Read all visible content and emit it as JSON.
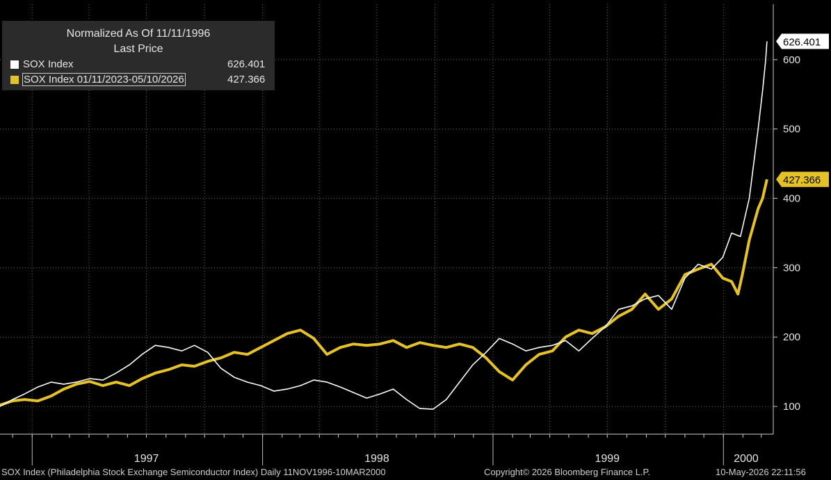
{
  "legend": {
    "title_line1": "Normalized As Of 11/11/1996",
    "title_line2": "Last Price",
    "series": [
      {
        "label": "SOX Index",
        "value": "626.401",
        "color": "#ffffff"
      },
      {
        "label": "SOX Index 01/11/2023-05/10/2026",
        "value": "427.366",
        "color": "#e6c229"
      }
    ]
  },
  "footer": {
    "left": "SOX Index (Philadelphia Stock Exchange Semiconductor Index) Daily 11NOV1996-10MAR2000",
    "center": "Copyright© 2026 Bloomberg Finance L.P.",
    "right": "10-May-2026 22:11:56"
  },
  "chart_data": {
    "type": "line",
    "ylim": [
      60,
      680
    ],
    "yticks": [
      100,
      200,
      300,
      400,
      500,
      600
    ],
    "ytick_labels": [
      "100",
      "200",
      "300",
      "400",
      "500",
      "600"
    ],
    "xlim": [
      "1996-11-11",
      "2000-03-20"
    ],
    "xtick_labels": [
      {
        "label": "1997",
        "date": "1997-07-01"
      },
      {
        "label": "1998",
        "date": "1998-07-01"
      },
      {
        "label": "1999",
        "date": "1999-07-01"
      },
      {
        "label": "2000",
        "date": "2000-02-06"
      }
    ],
    "year_boundaries": [
      "1997-01-01",
      "1998-01-01",
      "1999-01-01",
      "2000-01-01"
    ],
    "last_value_labels": [
      {
        "series": "SOX Index",
        "text": "626.401"
      },
      {
        "series": "SOX Index 01/11/2023-05/10/2026",
        "text": "427.366"
      }
    ],
    "grid": true,
    "legend_position": "top-left",
    "series": [
      {
        "name": "SOX Index",
        "color": "#ffffff",
        "points": [
          [
            "1996-11-11",
            100
          ],
          [
            "1996-12-01",
            110
          ],
          [
            "1996-12-20",
            118
          ],
          [
            "1997-01-10",
            128
          ],
          [
            "1997-01-31",
            135
          ],
          [
            "1997-02-20",
            132
          ],
          [
            "1997-03-12",
            135
          ],
          [
            "1997-04-02",
            140
          ],
          [
            "1997-04-23",
            138
          ],
          [
            "1997-05-14",
            148
          ],
          [
            "1997-06-04",
            160
          ],
          [
            "1997-06-24",
            175
          ],
          [
            "1997-07-15",
            188
          ],
          [
            "1997-08-05",
            185
          ],
          [
            "1997-08-26",
            180
          ],
          [
            "1997-09-15",
            188
          ],
          [
            "1997-10-06",
            178
          ],
          [
            "1997-10-27",
            155
          ],
          [
            "1997-11-17",
            142
          ],
          [
            "1997-12-08",
            135
          ],
          [
            "1997-12-29",
            130
          ],
          [
            "1998-01-19",
            122
          ],
          [
            "1998-02-09",
            125
          ],
          [
            "1998-03-02",
            130
          ],
          [
            "1998-03-23",
            138
          ],
          [
            "1998-04-13",
            135
          ],
          [
            "1998-05-04",
            128
          ],
          [
            "1998-05-25",
            120
          ],
          [
            "1998-06-15",
            112
          ],
          [
            "1998-07-06",
            118
          ],
          [
            "1998-07-27",
            125
          ],
          [
            "1998-08-17",
            110
          ],
          [
            "1998-09-07",
            97
          ],
          [
            "1998-09-28",
            96
          ],
          [
            "1998-10-19",
            110
          ],
          [
            "1998-11-09",
            135
          ],
          [
            "1998-11-30",
            160
          ],
          [
            "1998-12-21",
            178
          ],
          [
            "1999-01-11",
            198
          ],
          [
            "1999-02-01",
            190
          ],
          [
            "1999-02-22",
            180
          ],
          [
            "1999-03-15",
            185
          ],
          [
            "1999-04-05",
            188
          ],
          [
            "1999-04-26",
            195
          ],
          [
            "1999-05-17",
            180
          ],
          [
            "1999-06-07",
            198
          ],
          [
            "1999-06-28",
            215
          ],
          [
            "1999-07-19",
            240
          ],
          [
            "1999-08-09",
            245
          ],
          [
            "1999-08-30",
            255
          ],
          [
            "1999-09-20",
            260
          ],
          [
            "1999-10-11",
            240
          ],
          [
            "1999-11-01",
            285
          ],
          [
            "1999-11-22",
            305
          ],
          [
            "1999-12-13",
            298
          ],
          [
            "1999-12-31",
            315
          ],
          [
            "2000-01-14",
            350
          ],
          [
            "2000-01-28",
            345
          ],
          [
            "2000-02-11",
            400
          ],
          [
            "2000-02-25",
            500
          ],
          [
            "2000-03-03",
            555
          ],
          [
            "2000-03-08",
            600
          ],
          [
            "2000-03-10",
            626.401
          ]
        ]
      },
      {
        "name": "SOX Index 01/11/2023-05/10/2026",
        "color": "#e6c229",
        "points": [
          [
            "1996-11-11",
            102
          ],
          [
            "1996-12-01",
            108
          ],
          [
            "1996-12-20",
            110
          ],
          [
            "1997-01-10",
            108
          ],
          [
            "1997-01-31",
            115
          ],
          [
            "1997-02-20",
            125
          ],
          [
            "1997-03-12",
            132
          ],
          [
            "1997-04-02",
            136
          ],
          [
            "1997-04-23",
            130
          ],
          [
            "1997-05-14",
            135
          ],
          [
            "1997-06-04",
            130
          ],
          [
            "1997-06-24",
            140
          ],
          [
            "1997-07-15",
            148
          ],
          [
            "1997-08-05",
            153
          ],
          [
            "1997-08-26",
            160
          ],
          [
            "1997-09-15",
            158
          ],
          [
            "1997-10-06",
            165
          ],
          [
            "1997-10-27",
            170
          ],
          [
            "1997-11-17",
            178
          ],
          [
            "1997-12-08",
            175
          ],
          [
            "1997-12-29",
            185
          ],
          [
            "1998-01-19",
            195
          ],
          [
            "1998-02-09",
            205
          ],
          [
            "1998-03-02",
            210
          ],
          [
            "1998-03-23",
            198
          ],
          [
            "1998-04-13",
            175
          ],
          [
            "1998-05-04",
            185
          ],
          [
            "1998-05-25",
            190
          ],
          [
            "1998-06-15",
            188
          ],
          [
            "1998-07-06",
            190
          ],
          [
            "1998-07-27",
            195
          ],
          [
            "1998-08-17",
            185
          ],
          [
            "1998-09-07",
            192
          ],
          [
            "1998-09-28",
            188
          ],
          [
            "1998-10-19",
            185
          ],
          [
            "1998-11-09",
            190
          ],
          [
            "1998-11-30",
            185
          ],
          [
            "1998-12-21",
            170
          ],
          [
            "1999-01-11",
            150
          ],
          [
            "1999-02-01",
            138
          ],
          [
            "1999-02-22",
            160
          ],
          [
            "1999-03-15",
            175
          ],
          [
            "1999-04-05",
            180
          ],
          [
            "1999-04-26",
            200
          ],
          [
            "1999-05-17",
            210
          ],
          [
            "1999-06-07",
            205
          ],
          [
            "1999-06-28",
            215
          ],
          [
            "1999-07-19",
            230
          ],
          [
            "1999-08-09",
            240
          ],
          [
            "1999-08-30",
            262
          ],
          [
            "1999-09-20",
            240
          ],
          [
            "1999-10-11",
            255
          ],
          [
            "1999-11-01",
            290
          ],
          [
            "1999-11-22",
            298
          ],
          [
            "1999-12-13",
            305
          ],
          [
            "1999-12-31",
            285
          ],
          [
            "2000-01-14",
            280
          ],
          [
            "2000-01-24",
            262
          ],
          [
            "2000-01-31",
            290
          ],
          [
            "2000-02-11",
            340
          ],
          [
            "2000-02-25",
            385
          ],
          [
            "2000-03-03",
            400
          ],
          [
            "2000-03-10",
            427.366
          ]
        ]
      }
    ]
  }
}
